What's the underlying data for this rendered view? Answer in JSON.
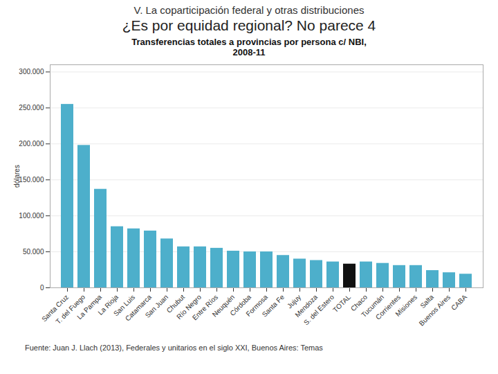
{
  "chart_data": {
    "type": "bar",
    "title": "V. La coparticipación federal y otras distribuciones",
    "subtitle": "¿Es por equidad regional? No parece 4",
    "chart_title": "Transferencias totales a provincias por persona c/ NBI,\n2008-11",
    "ylabel": "dólares",
    "caption": "Fuente: Juan J. Llach (2013), Federales y unitarios en el siglo XXI, Buenos Aires: Temas",
    "categories": [
      "Santa Cruz",
      "T. del Fuego",
      "La Pampa",
      "La Rioja",
      "San Luis",
      "Catamarca",
      "San Juan",
      "Chubut",
      "Río Negro",
      "Entre Ríos",
      "Neuquén",
      "Córdoba",
      "Formosa",
      "Santa Fe",
      "Jujuy",
      "Mendoza",
      "S. del Estero",
      "TOTAL",
      "Chaco",
      "Tucumán",
      "Corrientes",
      "Misiones",
      "Salta",
      "Buenos Aires",
      "CABA"
    ],
    "values": [
      255000,
      198000,
      137000,
      85000,
      82000,
      79000,
      68000,
      57000,
      57000,
      55000,
      51000,
      50000,
      50000,
      45000,
      40000,
      38000,
      36000,
      33000,
      36000,
      34000,
      31000,
      31000,
      24000,
      21000,
      19000
    ],
    "colors": [
      "#4DAFCB",
      "#4DAFCB",
      "#4DAFCB",
      "#4DAFCB",
      "#4DAFCB",
      "#4DAFCB",
      "#4DAFCB",
      "#4DAFCB",
      "#4DAFCB",
      "#4DAFCB",
      "#4DAFCB",
      "#4DAFCB",
      "#4DAFCB",
      "#4DAFCB",
      "#4DAFCB",
      "#4DAFCB",
      "#4DAFCB",
      "#111111",
      "#4DAFCB",
      "#4DAFCB",
      "#4DAFCB",
      "#4DAFCB",
      "#4DAFCB",
      "#4DAFCB",
      "#4DAFCB"
    ],
    "ylim": [
      0,
      310000
    ],
    "yticks": [
      0,
      {
        "value": 50000,
        "label": "50.000"
      },
      {
        "value": 100000,
        "label": "100.000"
      },
      {
        "value": 150000,
        "label": "150.000"
      },
      {
        "value": 200000,
        "label": "200.000"
      },
      {
        "value": 250000,
        "label": "250.000"
      },
      {
        "value": 300000,
        "label": "300.000"
      }
    ],
    "grid": true
  }
}
